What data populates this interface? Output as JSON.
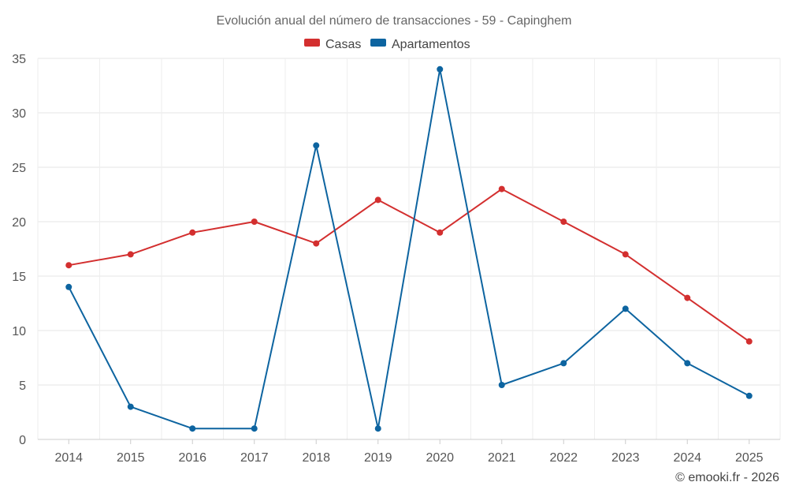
{
  "chart_data": {
    "type": "line",
    "title": "Evolución anual del número de transacciones - 59 - Capinghem",
    "x": [
      "2014",
      "2015",
      "2016",
      "2017",
      "2018",
      "2019",
      "2020",
      "2021",
      "2022",
      "2023",
      "2024",
      "2025"
    ],
    "series": [
      {
        "name": "Casas",
        "color": "#d32f2f",
        "values": [
          16,
          17,
          19,
          20,
          18,
          22,
          19,
          23,
          20,
          17,
          13,
          9
        ]
      },
      {
        "name": "Apartamentos",
        "color": "#0d64a0",
        "values": [
          14,
          3,
          1,
          1,
          27,
          1,
          34,
          5,
          7,
          12,
          7,
          4
        ]
      }
    ],
    "yticks": [
      "0",
      "5",
      "10",
      "15",
      "20",
      "25",
      "30",
      "35"
    ],
    "ylim": [
      0,
      35
    ],
    "grid": true,
    "legend": "top-center",
    "xlabel": "",
    "ylabel": ""
  },
  "footer": {
    "credit": "© emooki.fr - 2026"
  }
}
